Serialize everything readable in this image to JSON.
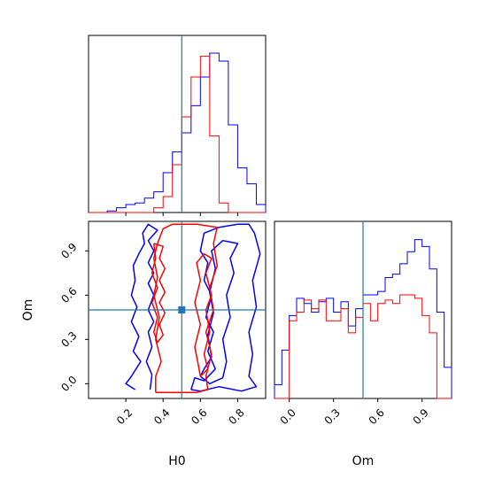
{
  "colors": {
    "series_a": "#0000ff",
    "series_b": "#ff0000",
    "truth": "#1f77b4",
    "frame": "#000000"
  },
  "chart_data": [
    {
      "type": "histogram",
      "panel": "H0 marginal",
      "xlim": [
        0.0,
        0.95
      ],
      "xticks": [
        0.2,
        0.4,
        0.6,
        0.8
      ],
      "tick_labels_shown": false,
      "truth": 0.5,
      "bin_edges": [
        0.0,
        0.05,
        0.1,
        0.15,
        0.2,
        0.25,
        0.3,
        0.35,
        0.4,
        0.45,
        0.5,
        0.55,
        0.6,
        0.65,
        0.7,
        0.75,
        0.8,
        0.85,
        0.9,
        0.95
      ],
      "series": [
        {
          "color": "blue",
          "values": [
            0,
            0,
            0.01,
            0.03,
            0.05,
            0.06,
            0.09,
            0.13,
            0.25,
            0.38,
            0.5,
            0.67,
            0.85,
            1.0,
            0.95,
            0.55,
            0.28,
            0.18,
            0.05
          ]
        },
        {
          "color": "red",
          "values": [
            0,
            0,
            0,
            0,
            0,
            0,
            0,
            0.03,
            0.1,
            0.3,
            0.6,
            0.85,
            0.98,
            0.48,
            0.06,
            0,
            0,
            0,
            0
          ]
        }
      ]
    },
    {
      "type": "contour",
      "panel": "H0 vs Om",
      "xlabel": "H0",
      "ylabel": "Om",
      "xlim": [
        0.0,
        0.95
      ],
      "ylim": [
        -0.1,
        1.1
      ],
      "xticks": [
        0.2,
        0.4,
        0.6,
        0.8
      ],
      "xtick_labels": [
        "0.2",
        "0.4",
        "0.6",
        "0.8"
      ],
      "yticks": [
        0.0,
        0.3,
        0.6,
        0.9
      ],
      "ytick_labels": [
        "0.0",
        "0.3",
        "0.6",
        "0.9"
      ],
      "truth": [
        0.5,
        0.5
      ],
      "contours": [
        {
          "color": "blue",
          "level": "outer",
          "points": [
            [
              0.25,
              -0.04
            ],
            [
              0.2,
              0.0
            ],
            [
              0.23,
              0.05
            ],
            [
              0.28,
              0.15
            ],
            [
              0.24,
              0.22
            ],
            [
              0.27,
              0.32
            ],
            [
              0.23,
              0.42
            ],
            [
              0.26,
              0.52
            ],
            [
              0.23,
              0.6
            ],
            [
              0.25,
              0.7
            ],
            [
              0.24,
              0.8
            ],
            [
              0.27,
              0.88
            ],
            [
              0.3,
              0.95
            ],
            [
              0.29,
              1.02
            ],
            [
              0.32,
              1.08
            ],
            [
              0.37,
              1.04
            ],
            [
              0.32,
              0.97
            ],
            [
              0.35,
              0.9
            ],
            [
              0.32,
              0.82
            ],
            [
              0.35,
              0.75
            ],
            [
              0.32,
              0.68
            ],
            [
              0.35,
              0.6
            ],
            [
              0.32,
              0.5
            ],
            [
              0.35,
              0.42
            ],
            [
              0.32,
              0.35
            ],
            [
              0.34,
              0.25
            ],
            [
              0.31,
              0.15
            ],
            [
              0.34,
              0.06
            ],
            [
              0.33,
              -0.04
            ]
          ]
        },
        {
          "color": "blue",
          "level": "outer-right",
          "points": [
            [
              0.55,
              -0.04
            ],
            [
              0.6,
              -0.05
            ],
            [
              0.7,
              -0.02
            ],
            [
              0.82,
              -0.05
            ],
            [
              0.9,
              -0.02
            ],
            [
              0.86,
              0.05
            ],
            [
              0.88,
              0.2
            ],
            [
              0.86,
              0.35
            ],
            [
              0.9,
              0.52
            ],
            [
              0.88,
              0.7
            ],
            [
              0.92,
              0.88
            ],
            [
              0.89,
              1.02
            ],
            [
              0.86,
              1.08
            ],
            [
              0.8,
              1.08
            ],
            [
              0.7,
              1.06
            ],
            [
              0.62,
              1.02
            ],
            [
              0.6,
              0.9
            ],
            [
              0.64,
              0.82
            ],
            [
              0.62,
              0.7
            ],
            [
              0.66,
              0.6
            ],
            [
              0.63,
              0.45
            ],
            [
              0.67,
              0.35
            ],
            [
              0.64,
              0.22
            ],
            [
              0.68,
              0.1
            ],
            [
              0.62,
              0.02
            ],
            [
              0.57,
              0.04
            ],
            [
              0.55,
              -0.04
            ]
          ]
        },
        {
          "color": "blue",
          "level": "inner",
          "points": [
            [
              0.6,
              0.05
            ],
            [
              0.65,
              0.0
            ],
            [
              0.72,
              0.04
            ],
            [
              0.74,
              0.15
            ],
            [
              0.72,
              0.3
            ],
            [
              0.76,
              0.45
            ],
            [
              0.74,
              0.6
            ],
            [
              0.78,
              0.75
            ],
            [
              0.76,
              0.85
            ],
            [
              0.8,
              0.95
            ],
            [
              0.72,
              0.97
            ],
            [
              0.66,
              0.9
            ],
            [
              0.68,
              0.78
            ],
            [
              0.65,
              0.62
            ],
            [
              0.67,
              0.48
            ],
            [
              0.64,
              0.33
            ],
            [
              0.66,
              0.18
            ],
            [
              0.62,
              0.1
            ],
            [
              0.6,
              0.05
            ]
          ]
        },
        {
          "color": "red",
          "level": "outer",
          "points": [
            [
              0.36,
              -0.06
            ],
            [
              0.48,
              -0.06
            ],
            [
              0.58,
              -0.06
            ],
            [
              0.64,
              -0.04
            ],
            [
              0.63,
              0.05
            ],
            [
              0.66,
              0.2
            ],
            [
              0.63,
              0.35
            ],
            [
              0.67,
              0.5
            ],
            [
              0.65,
              0.65
            ],
            [
              0.69,
              0.8
            ],
            [
              0.67,
              0.95
            ],
            [
              0.69,
              1.06
            ],
            [
              0.58,
              1.08
            ],
            [
              0.45,
              1.08
            ],
            [
              0.4,
              1.05
            ],
            [
              0.37,
              0.95
            ],
            [
              0.35,
              0.85
            ],
            [
              0.37,
              0.72
            ],
            [
              0.35,
              0.6
            ],
            [
              0.38,
              0.45
            ],
            [
              0.36,
              0.3
            ],
            [
              0.39,
              0.15
            ],
            [
              0.36,
              0.05
            ],
            [
              0.36,
              -0.06
            ]
          ]
        },
        {
          "color": "red",
          "level": "inner",
          "points": [
            [
              0.6,
              0.05
            ],
            [
              0.64,
              0.1
            ],
            [
              0.62,
              0.2
            ],
            [
              0.65,
              0.35
            ],
            [
              0.63,
              0.5
            ],
            [
              0.66,
              0.6
            ],
            [
              0.63,
              0.75
            ],
            [
              0.66,
              0.85
            ],
            [
              0.62,
              0.88
            ],
            [
              0.58,
              0.82
            ],
            [
              0.6,
              0.7
            ],
            [
              0.57,
              0.55
            ],
            [
              0.6,
              0.4
            ],
            [
              0.57,
              0.25
            ],
            [
              0.59,
              0.12
            ],
            [
              0.6,
              0.05
            ]
          ]
        },
        {
          "color": "red",
          "level": "inner-left",
          "points": [
            [
              0.35,
              0.95
            ],
            [
              0.4,
              0.93
            ],
            [
              0.38,
              0.85
            ],
            [
              0.41,
              0.78
            ],
            [
              0.38,
              0.7
            ],
            [
              0.41,
              0.62
            ],
            [
              0.38,
              0.55
            ],
            [
              0.41,
              0.48
            ],
            [
              0.38,
              0.4
            ],
            [
              0.4,
              0.33
            ],
            [
              0.37,
              0.28
            ],
            [
              0.35,
              0.35
            ],
            [
              0.37,
              0.45
            ],
            [
              0.34,
              0.55
            ],
            [
              0.37,
              0.65
            ],
            [
              0.34,
              0.75
            ],
            [
              0.36,
              0.85
            ],
            [
              0.35,
              0.95
            ]
          ]
        }
      ]
    },
    {
      "type": "histogram",
      "panel": "Om marginal",
      "xlabel": "Om",
      "xlim": [
        -0.1,
        1.1
      ],
      "xticks": [
        0.0,
        0.3,
        0.6,
        0.9
      ],
      "xtick_labels": [
        "0.0",
        "0.3",
        "0.6",
        "0.9"
      ],
      "truth": 0.5,
      "bin_edges": [
        -0.1,
        -0.05,
        0.0,
        0.05,
        0.1,
        0.15,
        0.2,
        0.25,
        0.3,
        0.35,
        0.4,
        0.45,
        0.5,
        0.55,
        0.6,
        0.65,
        0.7,
        0.75,
        0.8,
        0.85,
        0.9,
        0.95,
        1.0,
        1.05,
        1.1
      ],
      "series": [
        {
          "color": "blue",
          "values": [
            0.08,
            0.28,
            0.48,
            0.58,
            0.55,
            0.5,
            0.56,
            0.58,
            0.5,
            0.56,
            0.42,
            0.52,
            0.6,
            0.6,
            0.62,
            0.7,
            0.72,
            0.78,
            0.85,
            0.92,
            0.88,
            0.75,
            0.5,
            0.18
          ]
        },
        {
          "color": "red",
          "values": [
            0,
            0,
            0.45,
            0.5,
            0.57,
            0.52,
            0.57,
            0.45,
            0.45,
            0.52,
            0.38,
            0.47,
            0.55,
            0.45,
            0.55,
            0.57,
            0.55,
            0.6,
            0.6,
            0.58,
            0.48,
            0.38,
            0,
            0
          ]
        }
      ]
    }
  ]
}
